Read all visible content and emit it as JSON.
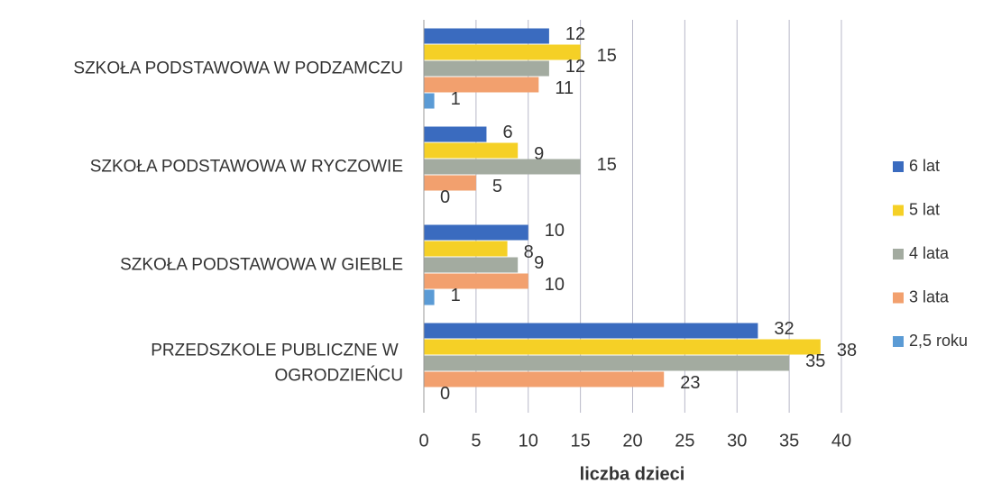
{
  "chart_data": {
    "type": "hbar",
    "categories": [
      "SZKOŁA PODSTAWOWA W PODZAMCZU",
      "SZKOŁA PODSTAWOWA W RYCZOWIE",
      "SZKOŁA PODSTAWOWA W GIEBLE",
      "PRZEDSZKOLE PUBLICZNE W OGRODZIEŃCU"
    ],
    "series": [
      {
        "name": "6 lat",
        "color": "#3a6bbf",
        "values": [
          12,
          6,
          10,
          32
        ]
      },
      {
        "name": "5 lat",
        "color": "#f5d026",
        "values": [
          15,
          9,
          8,
          38
        ]
      },
      {
        "name": "4 lata",
        "color": "#a3aba0",
        "values": [
          12,
          15,
          9,
          35
        ]
      },
      {
        "name": "3 lata",
        "color": "#f2a06e",
        "values": [
          11,
          5,
          10,
          23
        ]
      },
      {
        "name": "2,5 roku",
        "color": "#5b9bd5",
        "values": [
          1,
          0,
          1,
          0
        ]
      }
    ],
    "x_label": "liczba dzieci",
    "xlim": [
      0,
      40
    ],
    "xticks": [
      0,
      5,
      10,
      15,
      20,
      25,
      30,
      35,
      40
    ],
    "grid": true,
    "legend": "right"
  }
}
